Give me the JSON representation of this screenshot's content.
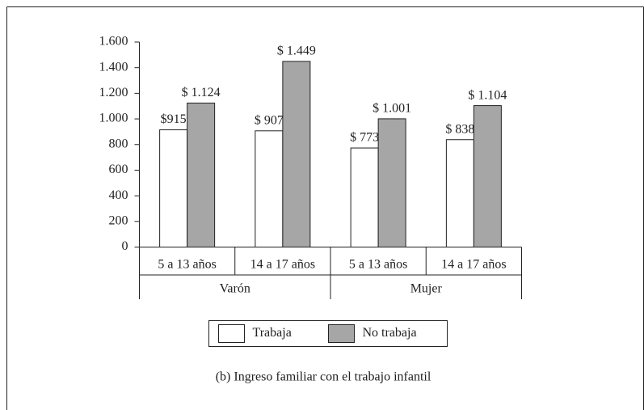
{
  "chart_data": {
    "type": "bar",
    "caption": "(b) Ingreso familiar con el trabajo infantil",
    "categories": [
      "5 a 13 años",
      "14 a 17 años",
      "5 a 13 años",
      "14 a 17 años"
    ],
    "groups": [
      "Varón",
      "Mujer"
    ],
    "series": [
      {
        "name": "Trabaja",
        "color": "#ffffff",
        "values": [
          915,
          907,
          773,
          838
        ],
        "value_labels": [
          "$915",
          "$ 907",
          "$ 773",
          "$ 838"
        ]
      },
      {
        "name": "No trabaja",
        "color": "#a6a6a6",
        "values": [
          1124,
          1449,
          1001,
          1104
        ],
        "value_labels": [
          "$ 1.124",
          "$ 1.449",
          "$ 1.001",
          "$ 1.104"
        ]
      }
    ],
    "ylim": [
      0,
      1600
    ],
    "yticks": [
      0,
      200,
      400,
      600,
      800,
      {
        "value": 1000,
        "label": "1.000"
      },
      {
        "value": 1200,
        "label": "1.200"
      },
      {
        "value": 1400,
        "label": "1.400"
      },
      {
        "value": 1600,
        "label": "1.600"
      }
    ],
    "legend": "bottom"
  }
}
